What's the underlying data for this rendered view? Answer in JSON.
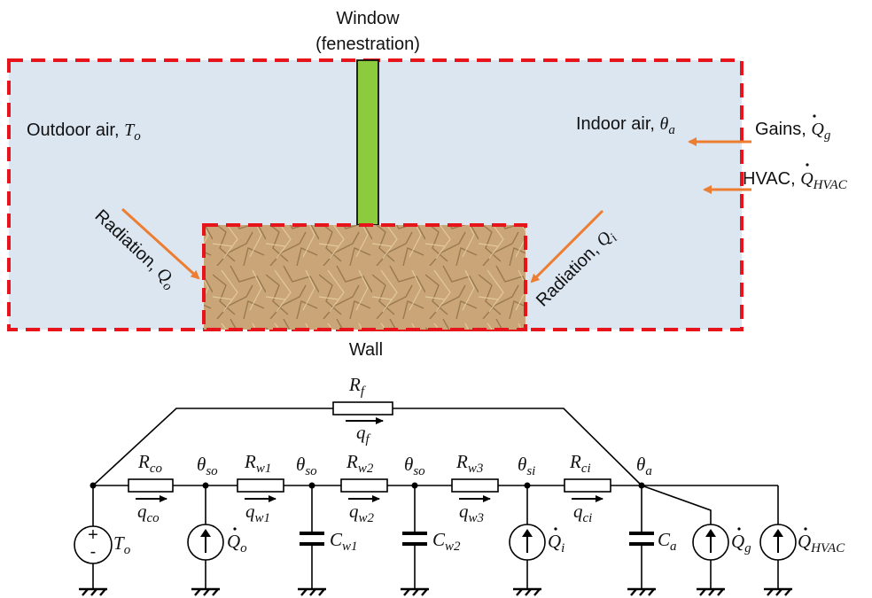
{
  "colors": {
    "air_fill": "#dce6f1",
    "boundary_dash": "#e8141b",
    "window_fill": "#8ccb3e",
    "arrow": "#ed7d31",
    "wall_texture": "#c9a577",
    "wire": "#000000"
  },
  "building": {
    "window_label_line1": "Window",
    "window_label_line2": "(fenestration)",
    "outdoor_label": "Outdoor air, ",
    "outdoor_sym": "T",
    "outdoor_sub": "o",
    "indoor_label": "Indoor air, ",
    "indoor_sym": "θ",
    "indoor_sub": "a",
    "gains_label": "Gains, ",
    "gains_sym": "Q",
    "gains_sub": "g",
    "hvac_label": "HVAC, ",
    "hvac_sym": "Q",
    "hvac_sub": "HVAC",
    "rad_out_label": "Radiation, ",
    "rad_out_sym": "Q",
    "rad_out_sub": "o",
    "rad_in_label": "Radiation, ",
    "rad_in_sym": "Q",
    "rad_in_sub": "i",
    "wall_label": "Wall"
  },
  "circuit": {
    "rf": {
      "sym": "R",
      "sub": "f"
    },
    "qf": {
      "sym": "q",
      "sub": "f"
    },
    "resistors": [
      {
        "sym": "R",
        "sub": "co",
        "flow_sym": "q",
        "flow_sub": "co"
      },
      {
        "sym": "R",
        "sub": "w1",
        "flow_sym": "q",
        "flow_sub": "w1"
      },
      {
        "sym": "R",
        "sub": "w2",
        "flow_sym": "q",
        "flow_sub": "w2"
      },
      {
        "sym": "R",
        "sub": "w3",
        "flow_sym": "q",
        "flow_sub": "w3"
      },
      {
        "sym": "R",
        "sub": "ci",
        "flow_sym": "q",
        "flow_sub": "ci"
      }
    ],
    "nodes": [
      {
        "sym": "θ",
        "sub": "so"
      },
      {
        "sym": "θ",
        "sub": "so"
      },
      {
        "sym": "θ",
        "sub": "so"
      },
      {
        "sym": "θ",
        "sub": "si"
      },
      {
        "sym": "θ",
        "sub": "a"
      }
    ],
    "capacitors": [
      {
        "sym": "C",
        "sub": "w1"
      },
      {
        "sym": "C",
        "sub": "w2"
      },
      {
        "sym": "C",
        "sub": "a"
      }
    ],
    "voltage_source": {
      "sym": "T",
      "sub": "o",
      "plus": "+",
      "minus": "-"
    },
    "flow_sources": [
      {
        "sym": "Q",
        "sub": "o"
      },
      {
        "sym": "Q",
        "sub": "i"
      },
      {
        "sym": "Q",
        "sub": "g"
      },
      {
        "sym": "Q",
        "sub": "HVAC"
      }
    ]
  }
}
